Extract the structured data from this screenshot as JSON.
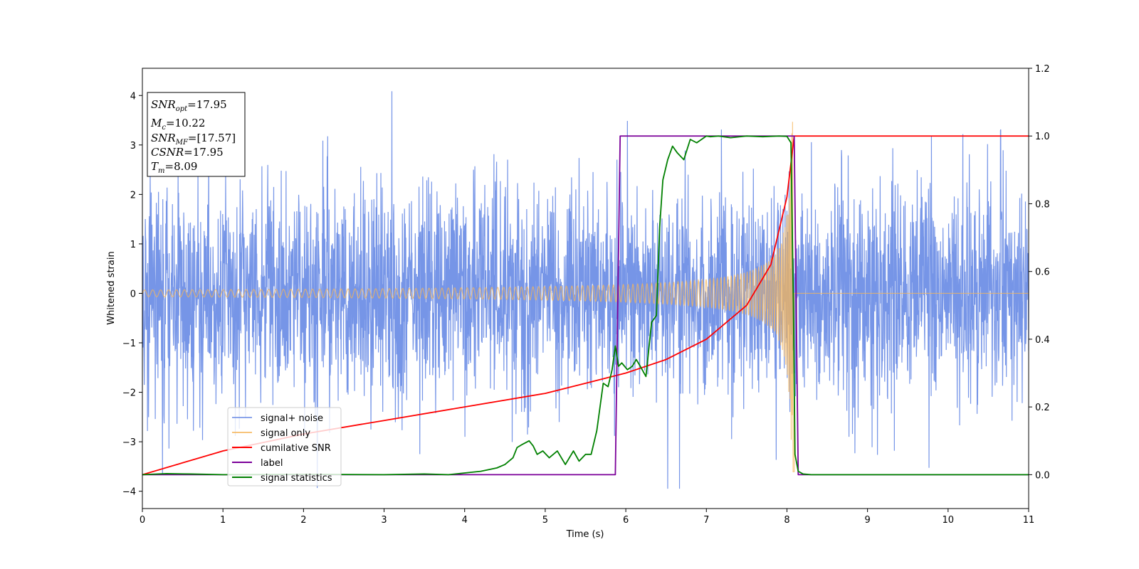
{
  "chart_data": {
    "type": "line",
    "xlabel": "Time (s)",
    "ylabel": "Whitened strain",
    "xlim": [
      0,
      11
    ],
    "ylim_left": [
      -4.35,
      4.55
    ],
    "ylim_right": [
      -0.1,
      1.2
    ],
    "x_ticks": [
      "0",
      "1",
      "2",
      "3",
      "4",
      "5",
      "6",
      "7",
      "8",
      "9",
      "10",
      "11"
    ],
    "y_left_ticks": [
      "−4",
      "−3",
      "−2",
      "−1",
      "0",
      "1",
      "2",
      "3",
      "4"
    ],
    "y_right_ticks": [
      "0.0",
      "0.2",
      "0.4",
      "0.6",
      "0.8",
      "1.0",
      "1.2"
    ],
    "legend_position": "lower-left",
    "colors": {
      "signal_noise": "#6f8fe6",
      "signal_only": "#f5b55a",
      "cumulative_snr": "#ff0000",
      "label": "#7b0099",
      "signal_statistics": "#008000"
    },
    "series": [
      {
        "name": "signal+ noise",
        "axis": "left",
        "description_values": "noise band approx ±2.5 with spikes to ±4, 0–11 s"
      },
      {
        "name": "signal only",
        "axis": "left",
        "chirp_end_time": 8.09
      },
      {
        "name": "cumilative SNR",
        "axis": "right",
        "x": [
          0,
          1,
          2,
          3,
          4,
          5,
          5.5,
          6,
          6.5,
          7,
          7.5,
          7.8,
          8.0,
          8.09,
          8.1,
          11
        ],
        "y": [
          0.0,
          0.07,
          0.12,
          0.16,
          0.2,
          0.24,
          0.27,
          0.3,
          0.34,
          0.4,
          0.5,
          0.62,
          0.82,
          1.0,
          1.0,
          1.0
        ]
      },
      {
        "name": "label",
        "axis": "right",
        "x": [
          0,
          5.87,
          5.93,
          8.09,
          8.14,
          11
        ],
        "y": [
          0,
          0,
          1,
          1,
          0,
          0
        ]
      },
      {
        "name": "signal statistics",
        "axis": "right",
        "x": [
          0,
          0.3,
          0.6,
          1,
          2,
          3,
          3.5,
          3.8,
          4,
          4.2,
          4.4,
          4.5,
          4.6,
          4.65,
          4.72,
          4.8,
          4.85,
          4.9,
          4.97,
          5.05,
          5.15,
          5.25,
          5.35,
          5.42,
          5.5,
          5.57,
          5.64,
          5.72,
          5.78,
          5.83,
          5.87,
          5.91,
          5.95,
          6.02,
          6.08,
          6.13,
          6.18,
          6.25,
          6.32,
          6.38,
          6.42,
          6.46,
          6.52,
          6.58,
          6.64,
          6.72,
          6.8,
          6.88,
          7.0,
          7.05,
          7.15,
          7.3,
          7.5,
          7.7,
          7.9,
          8.0,
          8.05,
          8.08,
          8.1,
          8.14,
          8.2,
          8.3,
          9,
          10,
          11
        ],
        "y": [
          0,
          0.003,
          0.002,
          0,
          0.001,
          0,
          0.002,
          0,
          0.005,
          0.01,
          0.02,
          0.03,
          0.05,
          0.08,
          0.09,
          0.1,
          0.085,
          0.06,
          0.07,
          0.05,
          0.07,
          0.03,
          0.07,
          0.04,
          0.06,
          0.06,
          0.13,
          0.27,
          0.26,
          0.31,
          0.38,
          0.32,
          0.33,
          0.31,
          0.32,
          0.34,
          0.32,
          0.29,
          0.45,
          0.47,
          0.73,
          0.87,
          0.93,
          0.97,
          0.95,
          0.93,
          0.99,
          0.98,
          1.0,
          0.998,
          1.0,
          0.995,
          1.0,
          0.998,
          1.0,
          0.999,
          0.98,
          0.5,
          0.06,
          0.01,
          0.002,
          0,
          0,
          0,
          0
        ]
      }
    ],
    "annotation_box": {
      "snr_opt_label": "SNR",
      "snr_opt_sub": "opt",
      "snr_opt_value": "=17.95",
      "mc_label": "M",
      "mc_sub": "c",
      "mc_value": "=10.22",
      "snr_mf_label": "SNR",
      "snr_mf_sub": "MF",
      "snr_mf_value": "=[17.57]",
      "csnr_label": "CSNR",
      "csnr_value": "=17.95",
      "tm_label": "T",
      "tm_sub": "m",
      "tm_value": "=8.09"
    },
    "legend": [
      {
        "label": "signal+ noise",
        "color": "#6f8fe6"
      },
      {
        "label": "signal only",
        "color": "#f5b55a"
      },
      {
        "label": "cumilative SNR",
        "color": "#ff0000"
      },
      {
        "label": "label",
        "color": "#7b0099"
      },
      {
        "label": "signal statistics",
        "color": "#008000"
      }
    ]
  }
}
